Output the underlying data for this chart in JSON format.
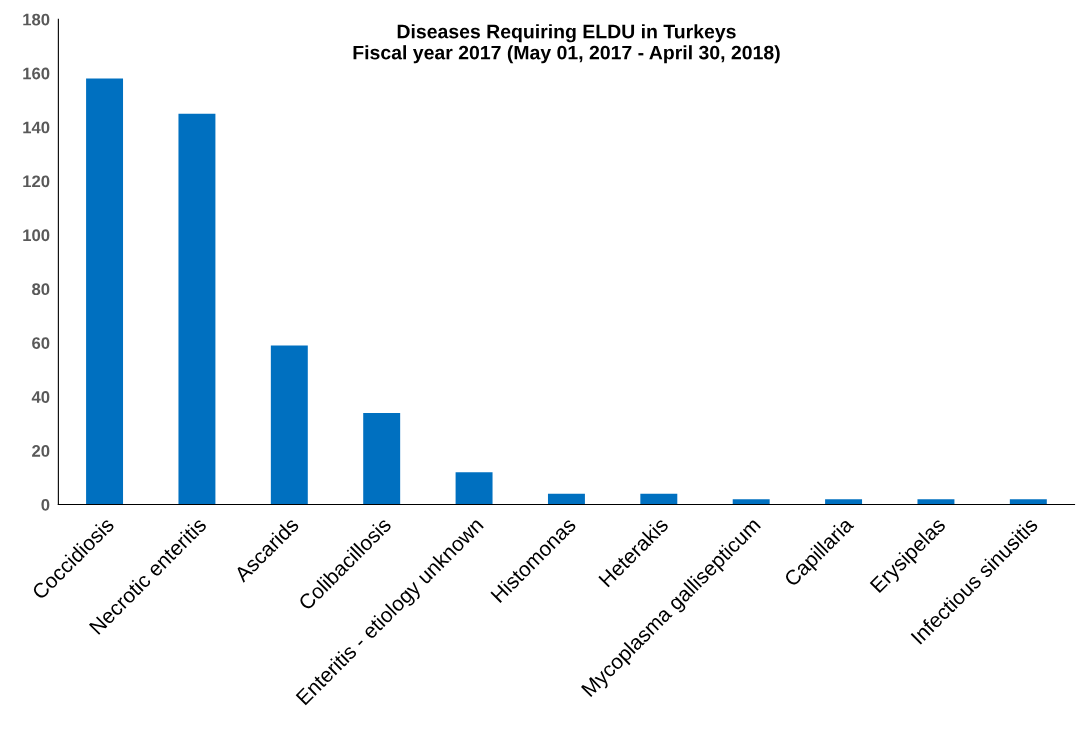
{
  "chart_data": {
    "type": "bar",
    "title": "Diseases Requiring ELDU in Turkeys\nFiscal year 2017 (May 01, 2017 - April 30, 2018)",
    "categories": [
      "Coccidiosis",
      "Necrotic enteritis",
      "Ascarids",
      "Colibacillosis",
      "Enteritis - etiology unknown",
      "Histomonas",
      "Heterakis",
      "Mycoplasma gallisepticum",
      "Capillaria",
      "Erysipelas",
      "Infectious sinusitis"
    ],
    "values": [
      158,
      145,
      59,
      34,
      12,
      4,
      4,
      2,
      2,
      2,
      2
    ],
    "color": "#0070c0",
    "ylim": [
      0,
      180
    ],
    "yticks": [
      0,
      20,
      40,
      60,
      80,
      100,
      120,
      140,
      160,
      180
    ],
    "grid": false,
    "legend": false
  }
}
